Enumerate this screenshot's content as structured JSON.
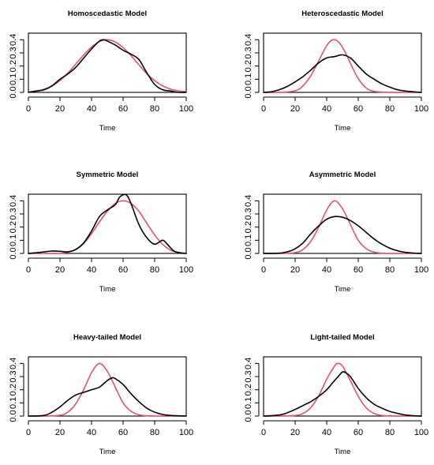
{
  "colors": {
    "empirical": "#000000",
    "fitted": "#df536b"
  },
  "chart_data": [
    {
      "type": "line",
      "title": "Homoscedastic Model",
      "xlabel": "Time",
      "ylabel": "",
      "xlim": [
        0,
        100
      ],
      "ylim": [
        0,
        0.45
      ],
      "xticks": [
        "0",
        "20",
        "40",
        "60",
        "80",
        "100"
      ],
      "yticks": [
        "0.0",
        "0.1",
        "0.2",
        "0.3",
        "0.4"
      ],
      "grid": false,
      "series": [
        {
          "role": "empirical",
          "color": "#000000",
          "x": [
            0,
            5,
            10,
            15,
            20,
            25,
            30,
            35,
            40,
            45,
            48,
            50,
            55,
            60,
            65,
            70,
            75,
            80,
            85,
            90,
            95,
            100
          ],
          "values": [
            0.0,
            0.01,
            0.02,
            0.05,
            0.1,
            0.14,
            0.19,
            0.26,
            0.33,
            0.39,
            0.4,
            0.39,
            0.36,
            0.32,
            0.29,
            0.25,
            0.15,
            0.06,
            0.02,
            0.01,
            0.0,
            0.0
          ]
        },
        {
          "role": "fitted",
          "color": "#df536b",
          "x": [
            0,
            5,
            10,
            15,
            20,
            25,
            30,
            35,
            40,
            45,
            50,
            55,
            60,
            65,
            70,
            75,
            80,
            85,
            90,
            95,
            100
          ],
          "values": [
            0.003,
            0.01,
            0.024,
            0.049,
            0.09,
            0.147,
            0.215,
            0.284,
            0.344,
            0.386,
            0.4,
            0.383,
            0.34,
            0.279,
            0.21,
            0.143,
            0.089,
            0.05,
            0.025,
            0.012,
            0.005
          ]
        }
      ]
    },
    {
      "type": "line",
      "title": "Heteroscedastic Model",
      "xlabel": "Time",
      "ylabel": "",
      "xlim": [
        0,
        100
      ],
      "ylim": [
        0,
        0.45
      ],
      "xticks": [
        "0",
        "20",
        "40",
        "60",
        "80",
        "100"
      ],
      "yticks": [
        "0.0",
        "0.1",
        "0.2",
        "0.3",
        "0.4"
      ],
      "grid": false,
      "series": [
        {
          "role": "empirical",
          "color": "#000000",
          "x": [
            0,
            5,
            10,
            15,
            20,
            25,
            30,
            35,
            40,
            45,
            50,
            55,
            60,
            65,
            70,
            75,
            80,
            85,
            90,
            95,
            100
          ],
          "values": [
            0.0,
            0.005,
            0.02,
            0.045,
            0.08,
            0.12,
            0.17,
            0.225,
            0.262,
            0.272,
            0.285,
            0.262,
            0.2,
            0.14,
            0.1,
            0.065,
            0.04,
            0.02,
            0.01,
            0.004,
            0.0
          ]
        },
        {
          "role": "fitted",
          "color": "#df536b",
          "x": [
            0,
            10,
            20,
            25,
            30,
            35,
            40,
            44,
            48,
            52,
            56,
            60,
            65,
            70,
            80,
            90,
            100
          ],
          "values": [
            0.0,
            0.0,
            0.012,
            0.05,
            0.128,
            0.24,
            0.355,
            0.4,
            0.377,
            0.298,
            0.196,
            0.104,
            0.034,
            0.008,
            0.0,
            0.0,
            0.0
          ]
        }
      ]
    },
    {
      "type": "line",
      "title": "Symmetric  Model",
      "xlabel": "Time",
      "ylabel": "",
      "xlim": [
        0,
        100
      ],
      "ylim": [
        0,
        0.45
      ],
      "xticks": [
        "0",
        "20",
        "40",
        "60",
        "80",
        "100"
      ],
      "yticks": [
        "0.0",
        "0.1",
        "0.2",
        "0.3",
        "0.4"
      ],
      "grid": false,
      "series": [
        {
          "role": "empirical",
          "color": "#000000",
          "x": [
            0,
            5,
            10,
            15,
            20,
            25,
            30,
            35,
            40,
            45,
            50,
            55,
            58,
            62,
            65,
            70,
            75,
            80,
            85,
            88,
            92,
            96,
            100
          ],
          "values": [
            0.0,
            0.005,
            0.012,
            0.018,
            0.016,
            0.012,
            0.03,
            0.08,
            0.17,
            0.28,
            0.33,
            0.37,
            0.43,
            0.445,
            0.38,
            0.22,
            0.12,
            0.07,
            0.1,
            0.07,
            0.02,
            0.005,
            0.0
          ]
        },
        {
          "role": "fitted",
          "color": "#df536b",
          "x": [
            0,
            10,
            20,
            25,
            30,
            35,
            40,
            45,
            50,
            55,
            60,
            65,
            70,
            75,
            80,
            85,
            90,
            95,
            100
          ],
          "values": [
            0.0,
            0.0,
            0.0,
            0.01,
            0.03,
            0.075,
            0.15,
            0.24,
            0.32,
            0.38,
            0.4,
            0.38,
            0.32,
            0.23,
            0.14,
            0.07,
            0.025,
            0.007,
            0.0
          ]
        }
      ]
    },
    {
      "type": "line",
      "title": "Asymmetric  Model",
      "xlabel": "Time",
      "ylabel": "",
      "xlim": [
        0,
        100
      ],
      "ylim": [
        0,
        0.45
      ],
      "xticks": [
        "0",
        "20",
        "40",
        "60",
        "80",
        "100"
      ],
      "yticks": [
        "0.0",
        "0.1",
        "0.2",
        "0.3",
        "0.4"
      ],
      "grid": false,
      "series": [
        {
          "role": "empirical",
          "color": "#000000",
          "x": [
            0,
            10,
            15,
            20,
            25,
            30,
            35,
            40,
            45,
            50,
            55,
            60,
            65,
            70,
            75,
            80,
            85,
            90,
            95,
            100
          ],
          "values": [
            0.0,
            0.002,
            0.012,
            0.035,
            0.08,
            0.15,
            0.21,
            0.26,
            0.28,
            0.275,
            0.25,
            0.21,
            0.16,
            0.11,
            0.07,
            0.04,
            0.02,
            0.008,
            0.003,
            0.0
          ]
        },
        {
          "role": "fitted",
          "color": "#df536b",
          "x": [
            0,
            10,
            20,
            25,
            30,
            35,
            40,
            45,
            50,
            55,
            60,
            65,
            70,
            75,
            80,
            90,
            100
          ],
          "values": [
            0.0,
            0.0,
            0.006,
            0.03,
            0.093,
            0.2,
            0.33,
            0.4,
            0.34,
            0.22,
            0.1,
            0.037,
            0.01,
            0.002,
            0.0,
            0.0,
            0.0
          ]
        }
      ]
    },
    {
      "type": "line",
      "title": "Heavy-tailed  Model",
      "xlabel": "Time",
      "ylabel": "",
      "xlim": [
        0,
        100
      ],
      "ylim": [
        0,
        0.45
      ],
      "xticks": [
        "0",
        "20",
        "40",
        "60",
        "80",
        "100"
      ],
      "yticks": [
        "0.0",
        "0.1",
        "0.2",
        "0.3",
        "0.4"
      ],
      "grid": false,
      "series": [
        {
          "role": "empirical",
          "color": "#000000",
          "x": [
            0,
            10,
            15,
            20,
            25,
            30,
            35,
            40,
            45,
            50,
            53,
            55,
            60,
            65,
            70,
            75,
            80,
            85,
            90,
            95,
            100
          ],
          "values": [
            0.0,
            0.005,
            0.03,
            0.07,
            0.12,
            0.16,
            0.18,
            0.2,
            0.22,
            0.27,
            0.29,
            0.285,
            0.24,
            0.17,
            0.11,
            0.06,
            0.03,
            0.012,
            0.005,
            0.002,
            0.0
          ]
        },
        {
          "role": "fitted",
          "color": "#df536b",
          "x": [
            0,
            10,
            20,
            25,
            30,
            35,
            40,
            45,
            50,
            55,
            60,
            65,
            70,
            75,
            80,
            90,
            100
          ],
          "values": [
            0.0,
            0.0,
            0.006,
            0.03,
            0.093,
            0.2,
            0.33,
            0.4,
            0.34,
            0.22,
            0.1,
            0.037,
            0.01,
            0.002,
            0.0,
            0.0,
            0.0
          ]
        }
      ]
    },
    {
      "type": "line",
      "title": "Light-tailed  Model",
      "xlabel": "Time",
      "ylabel": "",
      "xlim": [
        0,
        100
      ],
      "ylim": [
        0,
        0.45
      ],
      "xticks": [
        "0",
        "20",
        "40",
        "60",
        "80",
        "100"
      ],
      "yticks": [
        "0.0",
        "0.1",
        "0.2",
        "0.3",
        "0.4"
      ],
      "grid": false,
      "series": [
        {
          "role": "empirical",
          "color": "#000000",
          "x": [
            0,
            10,
            15,
            20,
            25,
            30,
            35,
            40,
            45,
            48,
            50,
            52,
            55,
            60,
            65,
            70,
            75,
            80,
            85,
            90,
            95,
            100
          ],
          "values": [
            0.0,
            0.008,
            0.025,
            0.05,
            0.08,
            0.11,
            0.15,
            0.2,
            0.27,
            0.31,
            0.335,
            0.33,
            0.3,
            0.21,
            0.14,
            0.09,
            0.06,
            0.035,
            0.02,
            0.008,
            0.003,
            0.0
          ]
        },
        {
          "role": "fitted",
          "color": "#df536b",
          "x": [
            0,
            10,
            20,
            25,
            30,
            35,
            40,
            45,
            47,
            50,
            55,
            60,
            65,
            70,
            75,
            80,
            90,
            100
          ],
          "values": [
            0.0,
            0.0,
            0.004,
            0.02,
            0.065,
            0.155,
            0.28,
            0.38,
            0.4,
            0.38,
            0.27,
            0.15,
            0.063,
            0.02,
            0.005,
            0.001,
            0.0,
            0.0
          ]
        }
      ]
    }
  ]
}
